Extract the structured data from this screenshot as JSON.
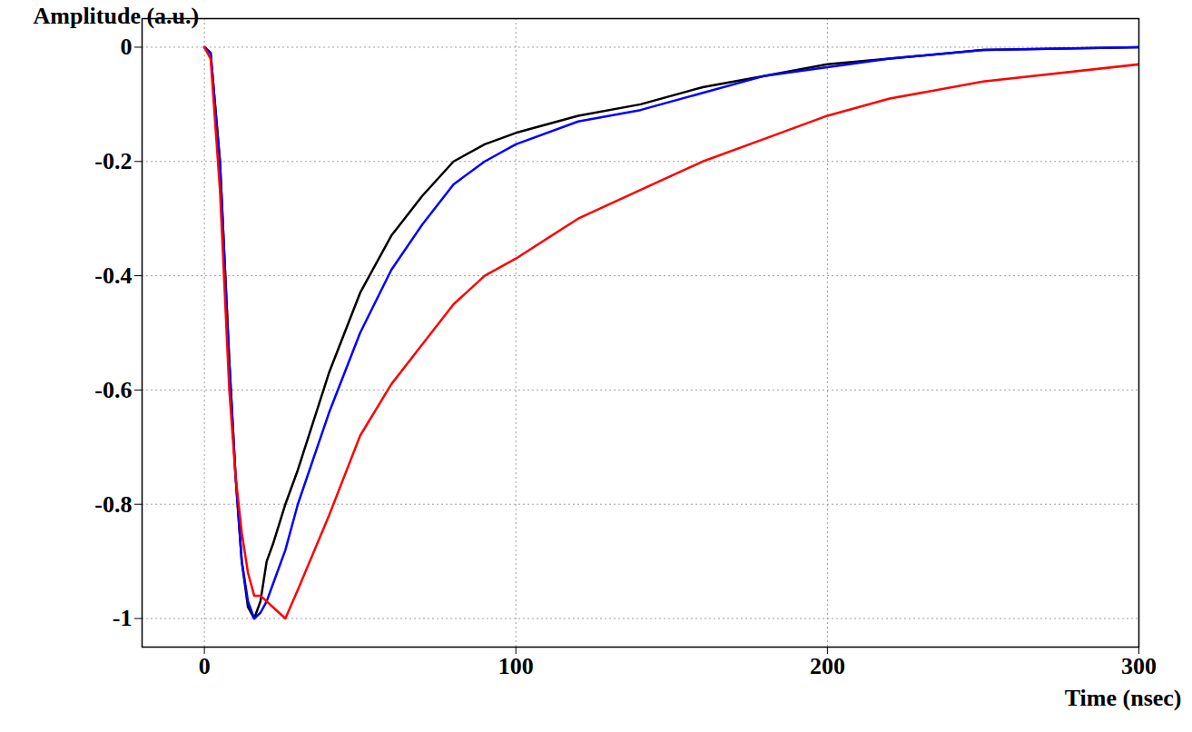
{
  "chart_data": {
    "type": "line",
    "x_label": "Time (nsec)",
    "y_label": "Amplitude (a.u.)",
    "xlim": [
      -20,
      300
    ],
    "xticks": [
      0,
      100,
      200,
      300
    ],
    "ylim": [
      -1.05,
      0.05
    ],
    "yticks": [
      0,
      -0.2,
      -0.4,
      -0.6,
      -0.8,
      -1
    ],
    "grid": true,
    "x": [
      0,
      2,
      5,
      8,
      10,
      12,
      14,
      16,
      18,
      20,
      22,
      26,
      30,
      40,
      50,
      60,
      70,
      80,
      90,
      100,
      120,
      140,
      160,
      180,
      200,
      220,
      250,
      300
    ],
    "series": [
      {
        "color": "#000000",
        "values": [
          0,
          -0.01,
          -0.2,
          -0.55,
          -0.75,
          -0.9,
          -0.98,
          -1.0,
          -0.97,
          -0.9,
          -0.87,
          -0.8,
          -0.74,
          -0.57,
          -0.43,
          -0.33,
          -0.26,
          -0.2,
          -0.17,
          -0.15,
          -0.12,
          -0.1,
          -0.07,
          -0.05,
          -0.03,
          -0.02,
          -0.005,
          0
        ]
      },
      {
        "color": "#0000ff",
        "values": [
          0,
          -0.01,
          -0.2,
          -0.55,
          -0.75,
          -0.9,
          -0.97,
          -1.0,
          -0.99,
          -0.97,
          -0.94,
          -0.88,
          -0.8,
          -0.64,
          -0.5,
          -0.39,
          -0.31,
          -0.24,
          -0.2,
          -0.17,
          -0.13,
          -0.11,
          -0.08,
          -0.05,
          -0.035,
          -0.02,
          -0.005,
          0
        ]
      },
      {
        "color": "#ff0000",
        "values": [
          0,
          -0.02,
          -0.25,
          -0.6,
          -0.75,
          -0.85,
          -0.92,
          -0.96,
          -0.96,
          -0.97,
          -0.98,
          -1.0,
          -0.95,
          -0.82,
          -0.68,
          -0.59,
          -0.52,
          -0.45,
          -0.4,
          -0.37,
          -0.3,
          -0.25,
          -0.2,
          -0.16,
          -0.12,
          -0.09,
          -0.06,
          -0.03
        ]
      }
    ]
  }
}
